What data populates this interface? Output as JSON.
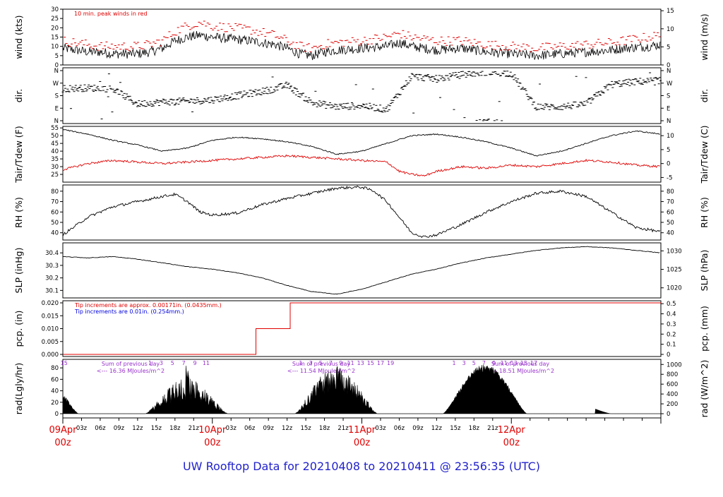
{
  "title": "UW Rooftop Data for 20210408  to  20210411 @ 23:56:35  (UTC)",
  "colors": {
    "red": "#e00000",
    "blue": "#0000dd",
    "purple": "#9933cc",
    "title_blue": "#2222cc",
    "black": "#000000"
  },
  "time_axis": {
    "hour_ticks": [
      "03z",
      "06z",
      "09z",
      "12z",
      "15z",
      "18z",
      "21z",
      "03z",
      "06z",
      "09z",
      "12z",
      "15z",
      "18z",
      "21z",
      "03z",
      "06z",
      "09z",
      "12z",
      "15z",
      "18z",
      "21z"
    ],
    "day_labels": [
      {
        "day": "09Apr",
        "hour": "00z"
      },
      {
        "day": "10Apr",
        "hour": "00z"
      },
      {
        "day": "11Apr",
        "hour": "00z"
      },
      {
        "day": "12Apr",
        "hour": "00z"
      }
    ]
  },
  "chart_data": [
    {
      "type": "line",
      "panel": "wind",
      "ylabel": "wind (kts)",
      "ylabel_right": "wind (m/s)",
      "ylim": [
        0,
        30
      ],
      "yticks": [
        0,
        5,
        10,
        15,
        20,
        25,
        30
      ],
      "yticks_right": [
        0,
        5,
        10,
        15
      ],
      "annotation": "10 min. peak winds in red",
      "series_profile": {
        "x_hours": [
          0,
          2,
          4,
          6,
          8,
          12,
          14,
          16,
          18,
          20,
          22,
          24,
          27,
          30,
          34,
          36,
          38,
          40,
          42,
          44,
          48,
          52,
          54,
          56,
          60,
          64,
          66,
          68,
          72,
          76,
          80,
          84,
          88,
          90,
          94,
          96
        ],
        "mean_kts": [
          9,
          8,
          7,
          7,
          6,
          6,
          7,
          9,
          13,
          15,
          16,
          15,
          14,
          13,
          11,
          9,
          6,
          5,
          7,
          8,
          9,
          10,
          12,
          10,
          8,
          9,
          8,
          7,
          6,
          5,
          6,
          7,
          8,
          9,
          10,
          11
        ],
        "peak_kts": [
          12,
          11,
          10,
          9,
          9,
          9,
          10,
          12,
          17,
          20,
          22,
          20,
          19,
          18,
          15,
          12,
          9,
          8,
          10,
          11,
          12,
          14,
          16,
          14,
          12,
          12,
          11,
          10,
          9,
          8,
          9,
          10,
          11,
          12,
          14,
          15
        ]
      }
    },
    {
      "type": "scatter",
      "panel": "dir",
      "ylabel": "dir.",
      "ylabel_right": "dir.",
      "yticks_labels": [
        "N",
        "E",
        "S",
        "W",
        "N"
      ],
      "yticks_degrees": [
        0,
        90,
        180,
        270,
        360
      ],
      "series_profile": {
        "x_hours": [
          0,
          4,
          8,
          12,
          16,
          20,
          24,
          28,
          32,
          34,
          36,
          40,
          44,
          48,
          52,
          56,
          60,
          64,
          68,
          72,
          76,
          80,
          84,
          88,
          92,
          96
        ],
        "deg": [
          230,
          235,
          230,
          120,
          135,
          140,
          150,
          180,
          210,
          230,
          255,
          130,
          100,
          110,
          80,
          320,
          300,
          330,
          350,
          340,
          100,
          100,
          120,
          260,
          280,
          290
        ]
      }
    },
    {
      "type": "line",
      "panel": "temp",
      "ylabel": "Tair/Tdew (F)",
      "ylabel_right": "Tair/Tdew (C)",
      "ylim": [
        20,
        56
      ],
      "yticks": [
        25,
        30,
        35,
        40,
        45,
        50,
        55
      ],
      "yticks_right": [
        -5,
        0,
        5,
        10
      ],
      "series": [
        {
          "color": "black",
          "x_hours": [
            0,
            4,
            8,
            12,
            16,
            20,
            24,
            28,
            32,
            36,
            40,
            44,
            48,
            52,
            56,
            60,
            64,
            68,
            72,
            76,
            80,
            84,
            88,
            92,
            96
          ],
          "values": [
            54,
            51,
            47,
            44,
            40,
            42,
            47,
            49,
            48,
            46,
            43,
            38,
            40,
            45,
            50,
            51,
            49,
            46,
            42,
            37,
            40,
            45,
            50,
            53,
            51
          ]
        },
        {
          "color": "red",
          "x_hours": [
            0,
            4,
            8,
            12,
            16,
            20,
            24,
            28,
            32,
            36,
            40,
            44,
            48,
            52,
            54,
            56,
            58,
            60,
            64,
            68,
            72,
            76,
            80,
            84,
            88,
            92,
            96
          ],
          "values": [
            28,
            32,
            34,
            33,
            32,
            33,
            34,
            35,
            36,
            37,
            36,
            35,
            34,
            33,
            27,
            25,
            24,
            27,
            30,
            29,
            31,
            30,
            32,
            34,
            33,
            31,
            30
          ]
        }
      ]
    },
    {
      "type": "line",
      "panel": "rh",
      "ylabel": "RH (%)",
      "ylabel_right": "RH (%)",
      "ylim": [
        33,
        86
      ],
      "yticks": [
        40,
        50,
        60,
        70,
        80
      ],
      "series_profile": {
        "x_hours": [
          0,
          4,
          8,
          12,
          16,
          18,
          20,
          22,
          24,
          28,
          32,
          36,
          40,
          44,
          48,
          50,
          52,
          54,
          56,
          58,
          60,
          64,
          68,
          72,
          76,
          80,
          84,
          88,
          92,
          96
        ],
        "values": [
          38,
          55,
          65,
          70,
          75,
          77,
          70,
          60,
          57,
          59,
          67,
          73,
          78,
          83,
          84,
          80,
          70,
          55,
          40,
          36,
          38,
          48,
          60,
          70,
          78,
          80,
          75,
          60,
          45,
          41
        ]
      }
    },
    {
      "type": "line",
      "panel": "slp",
      "ylabel": "SLP (inHg)",
      "ylabel_right": "SLP (hPa)",
      "ylim": [
        30.04,
        30.48
      ],
      "yticks": [
        30.1,
        30.2,
        30.3,
        30.4
      ],
      "yticks_right": [
        1020,
        1025,
        1030
      ],
      "series_profile": {
        "x_hours": [
          0,
          4,
          8,
          12,
          16,
          20,
          24,
          28,
          32,
          36,
          40,
          44,
          48,
          52,
          56,
          60,
          64,
          68,
          72,
          76,
          80,
          84,
          88,
          92,
          96
        ],
        "values": [
          30.37,
          30.36,
          30.37,
          30.35,
          30.32,
          30.29,
          30.27,
          30.24,
          30.2,
          30.14,
          30.09,
          30.07,
          30.11,
          30.17,
          30.23,
          30.27,
          30.32,
          30.36,
          30.39,
          30.42,
          30.44,
          30.45,
          30.44,
          30.42,
          30.4
        ]
      }
    },
    {
      "type": "line",
      "panel": "pcp",
      "ylabel": "pcp. (in)",
      "ylabel_right": "pcp. (mm)",
      "ylim": [
        0,
        0.02
      ],
      "yticks": [
        0.0,
        0.005,
        0.01,
        0.015,
        0.02
      ],
      "ytick_labels": [
        "0.000",
        "0.005",
        "0.010",
        "0.015",
        "0.020"
      ],
      "yticks_right": [
        0,
        0.1,
        0.2,
        0.3,
        0.4,
        0.5
      ],
      "annotations": [
        {
          "text": "Tip increments are approx. 0.00171in. (0.0435mm.)",
          "color": "red"
        },
        {
          "text": "Tip increments are 0.01in. (0.254mm.)",
          "color": "blue"
        }
      ],
      "steps": {
        "x_hours": [
          0,
          31,
          36.5,
          96
        ],
        "values": [
          0.0,
          0.01,
          0.02,
          0.02
        ]
      }
    },
    {
      "type": "area",
      "panel": "rad",
      "ylabel": "rad(Lgly/hr)",
      "ylabel_right": "rad (W/m^2)",
      "ylim": [
        0,
        90
      ],
      "yticks": [
        0,
        20,
        40,
        60,
        80
      ],
      "yticks_right": [
        0,
        200,
        400,
        600,
        800,
        1000
      ],
      "annotations": [
        {
          "text": "Sum of previous day",
          "sub": "<--- 16.36 MJoules/m^2"
        },
        {
          "text": "Sum of previous day",
          "sub": "<--- 11.54 MJoules/m^2"
        },
        {
          "text": "Sum of previous day",
          "sub": "<--- 18.51 MJoules/m^2"
        }
      ],
      "hour_marks": [
        "15",
        "1",
        "3",
        "5",
        "7",
        "9",
        "11",
        "1",
        "3",
        "5",
        "7",
        "9",
        "11",
        "13",
        "15",
        "17",
        "19",
        "1",
        "3",
        "5",
        "7",
        "9",
        "11",
        "13",
        "15",
        "17"
      ]
    }
  ]
}
